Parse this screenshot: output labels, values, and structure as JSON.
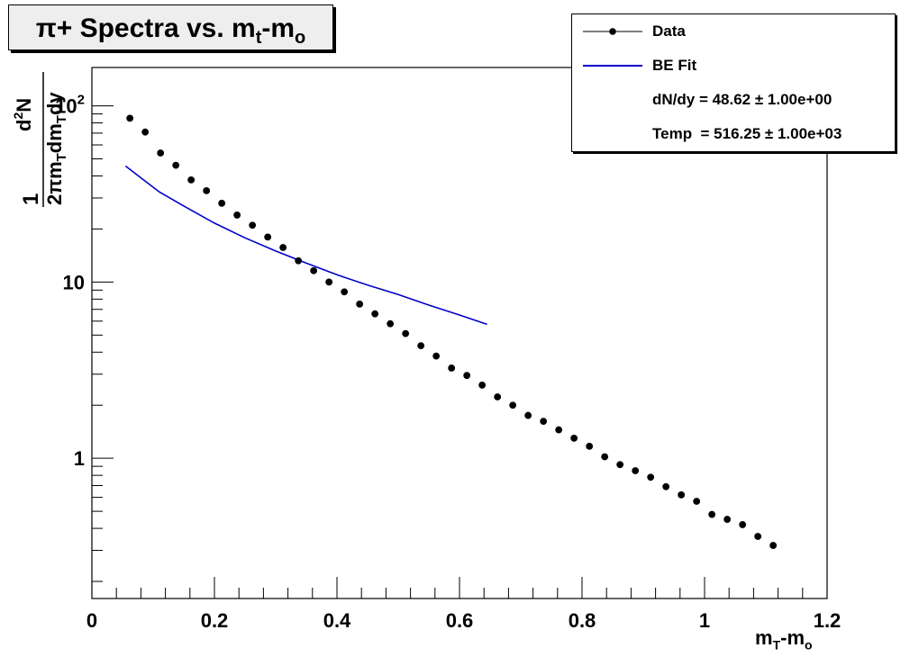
{
  "chart_data": {
    "type": "scatter",
    "title": "π+ Spectra vs. m_t-m_o",
    "xlabel": "m_T-m_o",
    "ylabel": "1 / (2π m_T dm_T dy) d²N",
    "xlim": [
      0,
      1.2
    ],
    "ylim": [
      0.16,
      165
    ],
    "yscale": "log",
    "x_ticks": [
      "0",
      "0.2",
      "0.4",
      "0.6",
      "0.8",
      "1",
      "1.2"
    ],
    "y_ticks": [
      "1",
      "10",
      "10^2"
    ],
    "grid": false,
    "legend_position": "top-right",
    "series": [
      {
        "name": "Data",
        "kind": "points",
        "color": "#000000",
        "x": [
          0.062,
          0.087,
          0.112,
          0.137,
          0.162,
          0.187,
          0.212,
          0.237,
          0.262,
          0.287,
          0.312,
          0.337,
          0.362,
          0.387,
          0.412,
          0.437,
          0.462,
          0.487,
          0.512,
          0.537,
          0.562,
          0.587,
          0.612,
          0.637,
          0.662,
          0.687,
          0.712,
          0.737,
          0.762,
          0.787,
          0.812,
          0.837,
          0.862,
          0.887,
          0.912,
          0.937,
          0.962,
          0.987,
          1.012,
          1.037,
          1.062,
          1.087,
          1.112
        ],
        "y": [
          85,
          71,
          54,
          46,
          38,
          33,
          28,
          24,
          21,
          18,
          15.7,
          13.2,
          11.6,
          10,
          8.8,
          7.5,
          6.6,
          5.8,
          5.1,
          4.35,
          3.8,
          3.25,
          2.95,
          2.6,
          2.23,
          2.0,
          1.75,
          1.62,
          1.45,
          1.3,
          1.17,
          1.02,
          0.92,
          0.85,
          0.78,
          0.69,
          0.62,
          0.57,
          0.48,
          0.45,
          0.42,
          0.36,
          0.32
        ]
      },
      {
        "name": "BE Fit",
        "kind": "line",
        "color": "#0000cc",
        "x": [
          0.055,
          0.08,
          0.11,
          0.15,
          0.2,
          0.25,
          0.3,
          0.35,
          0.4,
          0.45,
          0.5,
          0.55,
          0.6,
          0.645
        ],
        "y": [
          45.5,
          39,
          32.5,
          27,
          21.6,
          17.8,
          15,
          12.8,
          11,
          9.6,
          8.5,
          7.4,
          6.5,
          5.75
        ]
      }
    ],
    "legend": {
      "entries": [
        "Data",
        "BE Fit"
      ],
      "fit_params": [
        "dN/dy = 48.62 ± 1.00e+00",
        "Temp  = 516.25 ± 1.00e+03"
      ]
    }
  }
}
